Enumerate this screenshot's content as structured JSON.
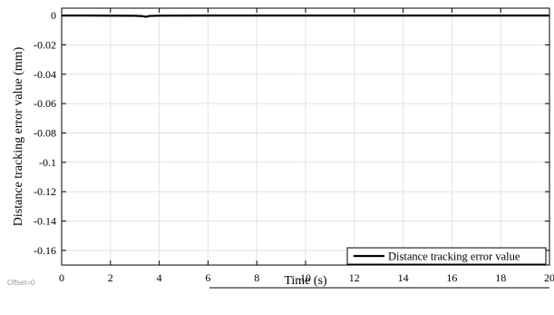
{
  "chart_data": {
    "type": "line",
    "title": "",
    "xlabel": "Time (s)",
    "ylabel": "Distance tracking error value (mm)",
    "xlim": [
      0,
      20
    ],
    "ylim": [
      -0.17,
      0.005
    ],
    "xticks": [
      0,
      2,
      4,
      6,
      8,
      10,
      12,
      14,
      16,
      18,
      20
    ],
    "yticks": [
      0,
      -0.02,
      -0.04,
      -0.06,
      -0.08,
      -0.1,
      -0.12,
      -0.14,
      -0.16
    ],
    "grid": true,
    "legend_position": "bottom-right",
    "series": [
      {
        "name": "Distance tracking error value",
        "color": "#000000",
        "x": [
          0,
          1,
          2,
          3,
          3.3,
          3.45,
          3.6,
          4,
          6,
          8,
          10,
          12,
          14,
          16,
          18,
          20
        ],
        "y": [
          0,
          0,
          -0.0001,
          -0.0002,
          -0.0004,
          -0.0009,
          -0.0003,
          -0.0001,
          0,
          0,
          0,
          0,
          0,
          0,
          0,
          0
        ]
      }
    ]
  },
  "footer": {
    "offset_text": "Offset=0"
  }
}
